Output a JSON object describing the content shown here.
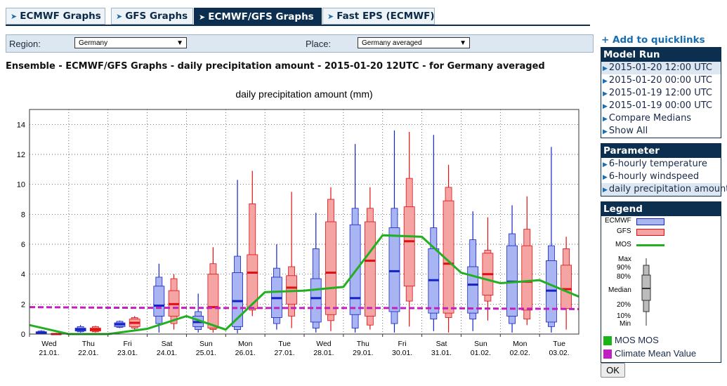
{
  "tabs": [
    {
      "label": "ECMWF Graphs",
      "active": false
    },
    {
      "label": "GFS Graphs",
      "active": false
    },
    {
      "label": "ECMWF/GFS Graphs",
      "active": true
    },
    {
      "label": "Fast EPS (ECMWF)",
      "active": false
    }
  ],
  "filters": {
    "region_label": "Region:",
    "region_value": "Germany",
    "place_label": "Place:",
    "place_value": "Germany averaged"
  },
  "page_title": "Ensemble - ECMWF/GFS Graphs - daily precipitation amount - 2015-01-20 12UTC - for Germany averaged",
  "quicklinks": "Add to quicklinks",
  "model_run": {
    "title": "Model Run",
    "items": [
      {
        "label": "2015-01-20 12:00 UTC",
        "selected": true
      },
      {
        "label": "2015-01-20 00:00 UTC",
        "selected": false
      },
      {
        "label": "2015-01-19 12:00 UTC",
        "selected": false
      },
      {
        "label": "2015-01-19 00:00 UTC",
        "selected": false
      },
      {
        "label": "Compare Medians",
        "selected": false
      },
      {
        "label": "Show All",
        "selected": false
      }
    ]
  },
  "parameter": {
    "title": "Parameter",
    "items": [
      {
        "label": "6-hourly temperature",
        "selected": false
      },
      {
        "label": "6-hourly windspeed",
        "selected": false
      },
      {
        "label": "daily precipitation amount",
        "selected": true
      }
    ]
  },
  "legend": {
    "title": "Legend",
    "ecmwf": "ECMWF",
    "gfs": "GFS",
    "mos": "MOS",
    "max": "Max",
    "p90": "90%",
    "p80": "80%",
    "median": "Median",
    "p20": "20%",
    "p10": "10%",
    "min": "Min",
    "check_mos": "MOS MOS",
    "check_climate": "Climate Mean Value",
    "ok": "OK"
  },
  "colors": {
    "ecmwf_box": "#a9b4f2",
    "ecmwf_median": "#1422c8",
    "gfs_box": "#f5a4a4",
    "gfs_median": "#e01010",
    "mos": "#22b022",
    "climate": "#c020c0",
    "nav": "#0d2f4f",
    "accent": "#1a6eb0"
  },
  "chart_data": {
    "type": "box",
    "title": "daily precipitation amount (mm)",
    "ylim": [
      0,
      15
    ],
    "yticks": [
      0,
      2,
      4,
      6,
      8,
      10,
      12,
      14
    ],
    "categories": [
      {
        "day": "Wed",
        "date": "21.01."
      },
      {
        "day": "Thu",
        "date": "22.01."
      },
      {
        "day": "Fri",
        "date": "23.01."
      },
      {
        "day": "Sat",
        "date": "24.01."
      },
      {
        "day": "Sun",
        "date": "25.01."
      },
      {
        "day": "Mon",
        "date": "26.01."
      },
      {
        "day": "Tue",
        "date": "27.01."
      },
      {
        "day": "Wed",
        "date": "28.01."
      },
      {
        "day": "Thu",
        "date": "29.01."
      },
      {
        "day": "Fri",
        "date": "30.01."
      },
      {
        "day": "Sat",
        "date": "31.01."
      },
      {
        "day": "Sun",
        "date": "01.02."
      },
      {
        "day": "Mon",
        "date": "02.02."
      },
      {
        "day": "Tue",
        "date": "03.02."
      }
    ],
    "series": [
      {
        "name": "ECMWF",
        "stats": [
          {
            "min": 0.0,
            "p10": 0.0,
            "p20": 0.05,
            "median": 0.1,
            "p80": 0.15,
            "p90": 0.2,
            "max": 0.25
          },
          {
            "min": 0.1,
            "p10": 0.15,
            "p20": 0.2,
            "median": 0.3,
            "p80": 0.4,
            "p90": 0.5,
            "max": 0.6
          },
          {
            "min": 0.4,
            "p10": 0.45,
            "p20": 0.5,
            "median": 0.65,
            "p80": 0.75,
            "p90": 0.85,
            "max": 0.9
          },
          {
            "min": 0.1,
            "p10": 0.7,
            "p20": 1.2,
            "median": 1.9,
            "p80": 3.2,
            "p90": 3.8,
            "max": 4.7
          },
          {
            "min": 0.1,
            "p10": 0.3,
            "p20": 0.5,
            "median": 0.8,
            "p80": 1.2,
            "p90": 1.5,
            "max": 2.7
          },
          {
            "min": 0.05,
            "p10": 0.3,
            "p20": 0.5,
            "median": 2.2,
            "p80": 4.1,
            "p90": 5.2,
            "max": 10.3
          },
          {
            "min": 0.3,
            "p10": 0.7,
            "p20": 1.1,
            "median": 2.4,
            "p80": 3.8,
            "p90": 4.4,
            "max": 6.0
          },
          {
            "min": 0.1,
            "p10": 0.4,
            "p20": 0.8,
            "median": 2.4,
            "p80": 3.7,
            "p90": 5.7,
            "max": 8.1
          },
          {
            "min": 0.1,
            "p10": 0.4,
            "p20": 1.3,
            "median": 2.4,
            "p80": 7.3,
            "p90": 8.4,
            "max": 12.7
          },
          {
            "min": 0.1,
            "p10": 0.7,
            "p20": 1.5,
            "median": 4.2,
            "p80": 7.1,
            "p90": 8.4,
            "max": 13.6
          },
          {
            "min": 0.2,
            "p10": 1.0,
            "p20": 1.4,
            "median": 3.6,
            "p80": 5.7,
            "p90": 7.1,
            "max": 13.3
          },
          {
            "min": 0.2,
            "p10": 1.0,
            "p20": 1.4,
            "median": 3.3,
            "p80": 4.5,
            "p90": 6.3,
            "max": 8.2
          },
          {
            "min": 0.1,
            "p10": 0.7,
            "p20": 1.2,
            "median": 3.5,
            "p80": 5.9,
            "p90": 6.7,
            "max": 8.6
          },
          {
            "min": 0.1,
            "p10": 0.5,
            "p20": 0.8,
            "median": 2.9,
            "p80": 4.9,
            "p90": 5.9,
            "max": 12.5
          }
        ]
      },
      {
        "name": "GFS",
        "stats": [
          {
            "min": 0.0,
            "p10": 0.0,
            "p20": 0.0,
            "median": 0.0,
            "p80": 0.02,
            "p90": 0.05,
            "max": 0.08
          },
          {
            "min": 0.1,
            "p10": 0.15,
            "p20": 0.2,
            "median": 0.3,
            "p80": 0.4,
            "p90": 0.5,
            "max": 0.55
          },
          {
            "min": 0.3,
            "p10": 0.4,
            "p20": 0.5,
            "median": 0.75,
            "p80": 1.0,
            "p90": 1.1,
            "max": 1.2
          },
          {
            "min": 0.3,
            "p10": 0.7,
            "p20": 1.2,
            "median": 2.0,
            "p80": 2.9,
            "p90": 3.7,
            "max": 4.0
          },
          {
            "min": 0.1,
            "p10": 0.3,
            "p20": 0.4,
            "median": 1.8,
            "p80": 4.0,
            "p90": 4.7,
            "max": 5.8
          },
          {
            "min": 1.2,
            "p10": 1.6,
            "p20": 1.7,
            "median": 4.1,
            "p80": 5.3,
            "p90": 8.7,
            "max": 10.9
          },
          {
            "min": 0.4,
            "p10": 1.2,
            "p20": 2.0,
            "median": 3.1,
            "p80": 3.9,
            "p90": 4.5,
            "max": 9.5
          },
          {
            "min": 0.2,
            "p10": 0.9,
            "p20": 1.3,
            "median": 4.1,
            "p80": 7.5,
            "p90": 9.0,
            "max": 9.8
          },
          {
            "min": 0.3,
            "p10": 0.6,
            "p20": 1.2,
            "median": 4.9,
            "p80": 7.5,
            "p90": 8.4,
            "max": 9.8
          },
          {
            "min": 0.5,
            "p10": 2.2,
            "p20": 3.2,
            "median": 6.2,
            "p80": 8.5,
            "p90": 10.4,
            "max": 13.5
          },
          {
            "min": 0.1,
            "p10": 1.1,
            "p20": 1.4,
            "median": 4.7,
            "p80": 8.9,
            "p90": 9.8,
            "max": 11.3
          },
          {
            "min": 0.9,
            "p10": 2.2,
            "p20": 2.6,
            "median": 4.0,
            "p80": 5.4,
            "p90": 5.6,
            "max": 7.8
          },
          {
            "min": 0.6,
            "p10": 1.0,
            "p20": 1.6,
            "median": 3.5,
            "p80": 5.9,
            "p90": 7.0,
            "max": 9.2
          },
          {
            "min": 0.3,
            "p10": 1.8,
            "p20": 1.7,
            "median": 3.0,
            "p80": 4.6,
            "p90": 5.7,
            "max": 6.5
          }
        ]
      }
    ],
    "lines": [
      {
        "name": "MOS",
        "style": "solid",
        "values": [
          0.6,
          0.0,
          0.0,
          0.35,
          1.2,
          0.3,
          2.8,
          2.9,
          3.15,
          6.6,
          6.5,
          4.1,
          3.4,
          3.6,
          2.5
        ]
      },
      {
        "name": "Climate Mean Value",
        "style": "dashed",
        "values": [
          1.8,
          1.78,
          1.76,
          1.75,
          1.75,
          1.74,
          1.74,
          1.74,
          1.74,
          1.74,
          1.73,
          1.72,
          1.7,
          1.69,
          1.67
        ]
      }
    ]
  }
}
